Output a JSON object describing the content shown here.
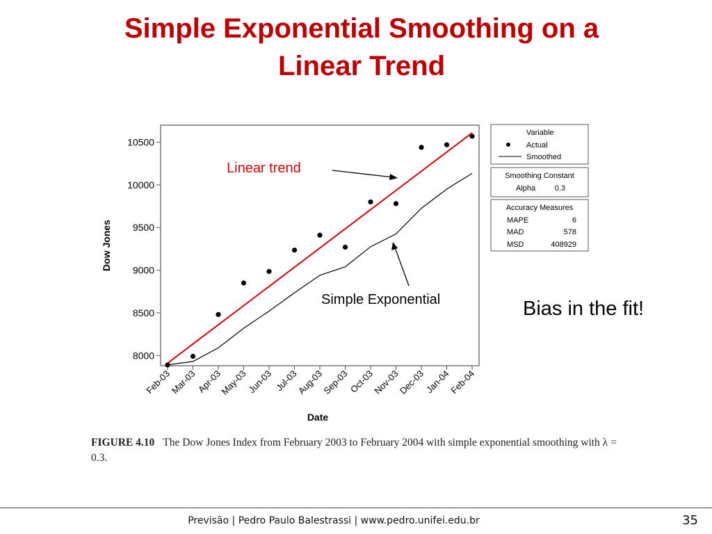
{
  "slide": {
    "title_line1": "Simple Exponential Smoothing on a",
    "title_line2": "Linear Trend",
    "callouts": {
      "linear_trend": "Linear trend",
      "simple_exponential": "Simple Exponential"
    },
    "bias_note": "Bias in the fit!",
    "caption": {
      "figure_label": "FIGURE 4.10",
      "text": "The Dow Jones Index from February 2003 to February 2004 with simple exponential smoothing with λ = 0.3."
    },
    "footer": "Previsão | Pedro Paulo Balestrassi | www.pedro.unifei.edu.br",
    "page_number": "35"
  },
  "chart_data": {
    "type": "line",
    "xlabel": "Date",
    "ylabel": "Dow Jones",
    "categories": [
      "Feb-03",
      "Mar-03",
      "Apr-03",
      "May-03",
      "Jun-03",
      "Jul-03",
      "Aug-03",
      "Sep-03",
      "Oct-03",
      "Nov-03",
      "Dec-03",
      "Jan-04",
      "Feb-04"
    ],
    "yticks": [
      8000,
      8500,
      9000,
      9500,
      10000,
      10500
    ],
    "ylim": [
      7880,
      10700
    ],
    "series": [
      {
        "name": "Actual",
        "style": "points",
        "color": "#000000",
        "values": [
          7890,
          7990,
          8480,
          8850,
          8985,
          9235,
          9410,
          9270,
          9800,
          9780,
          10440,
          10470,
          10570
        ]
      },
      {
        "name": "Smoothed",
        "style": "line",
        "color": "#000000",
        "values": [
          7890,
          7930,
          8090,
          8320,
          8520,
          8735,
          8940,
          9040,
          9275,
          9425,
          9725,
          9950,
          10135
        ]
      },
      {
        "style": "line",
        "color": "#e00000",
        "values": [
          7910,
          8135,
          8360,
          8585,
          8810,
          9035,
          9260,
          9485,
          9710,
          9935,
          10160,
          10385,
          10610
        ]
      }
    ],
    "legend": {
      "title": "Variable",
      "entries": [
        "Actual",
        "Smoothed"
      ],
      "position": "right"
    },
    "panels": [
      {
        "title": "Smoothing Constant",
        "rows": [
          [
            "Alpha",
            "0.3"
          ]
        ]
      },
      {
        "title": "Accuracy Measures",
        "rows": [
          [
            "MAPE",
            "6"
          ],
          [
            "MAD",
            "578"
          ],
          [
            "MSD",
            "408929"
          ]
        ]
      }
    ],
    "grid": false
  }
}
